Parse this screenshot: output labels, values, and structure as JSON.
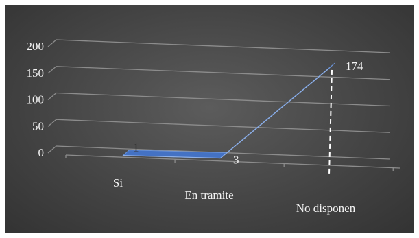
{
  "chart_data": {
    "type": "line",
    "style": "3d-line",
    "categories": [
      "Si",
      "En tramite",
      "No disponen"
    ],
    "series": [
      {
        "values": [
          1,
          3,
          174
        ],
        "color": "#4472C4"
      }
    ],
    "data_labels": [
      "1",
      "3",
      "174"
    ],
    "ylim": [
      0,
      200
    ],
    "yticks": [
      "0",
      "50",
      "100",
      "150",
      "200"
    ],
    "grid": true,
    "legend": "none",
    "title": "",
    "xlabel": "",
    "ylabel": ""
  },
  "colors": {
    "background": "#454545",
    "gridline": "#8c8c8c",
    "text": "#f2f2f2",
    "series_fill": "#4472C4",
    "dropline": "#ffffff"
  }
}
